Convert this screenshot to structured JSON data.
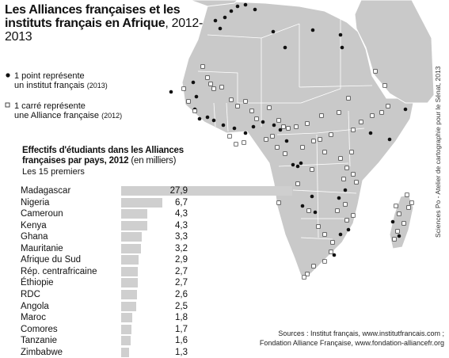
{
  "title": {
    "bold": "Les Alliances françaises et les instituts français en Afrique",
    "plain": ", 2012-2013"
  },
  "legend": {
    "dot": {
      "line1": "1 point représente",
      "line2": "un institut français",
      "year": "(2013)"
    },
    "square": {
      "line1": "1 carré représente",
      "line2": "une Alliance française",
      "year": "(2012)"
    }
  },
  "stats": {
    "title": "Effectifs d'étudiants dans les Alliances françaises par pays, 2012",
    "unit": "(en milliers)",
    "subtitle": "Les 15 premiers"
  },
  "chart_data": {
    "type": "bar",
    "orientation": "horizontal",
    "categories": [
      "Madagascar",
      "Nigeria",
      "Cameroun",
      "Kenya",
      "Ghana",
      "Mauritanie",
      "Afrique du Sud",
      "Rép. centrafricaine",
      "Éthiopie",
      "RDC",
      "Angola",
      "Maroc",
      "Comores",
      "Tanzanie",
      "Zimbabwe"
    ],
    "labels": [
      "27,9",
      "6,7",
      "4,3",
      "4,3",
      "3,3",
      "3,2",
      "2,9",
      "2,7",
      "2,7",
      "2,6",
      "2,5",
      "1,8",
      "1,7",
      "1,6",
      "1,3"
    ],
    "values": [
      27.9,
      6.7,
      4.3,
      4.3,
      3.3,
      3.2,
      2.9,
      2.7,
      2.7,
      2.6,
      2.5,
      1.8,
      1.7,
      1.6,
      1.3
    ],
    "colors": {
      "bar": "#cfcfcf"
    }
  },
  "map": {
    "colors": {
      "land": "#c9c9c9",
      "border": "#ffffff",
      "dot": "#111111",
      "square_fill": "#ffffff",
      "square_stroke": "#333333"
    },
    "symbols": {
      "institut": "filled-circle",
      "alliance": "open-square"
    }
  },
  "credit": "Sciences Po - Atelier de cartographie pour le Sénat, 2013",
  "sources": {
    "line1": "Sources : Institut français, www.institutfrancais.com ;",
    "line2": "Fondation Alliance Française, www.fondation-alliancefr.org"
  }
}
